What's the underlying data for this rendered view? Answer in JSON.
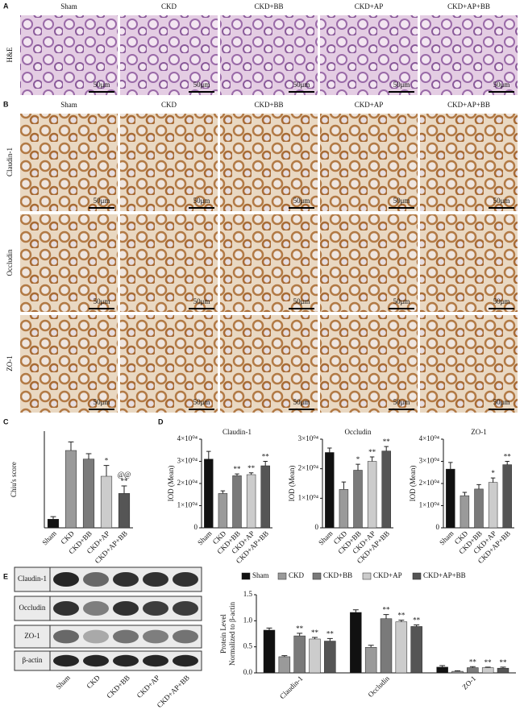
{
  "panel_labels": [
    "A",
    "B",
    "C",
    "D",
    "E"
  ],
  "histology": {
    "groups": [
      "Sham",
      "CKD",
      "CKD+BB",
      "CKD+AP",
      "CKD+AP+BB"
    ],
    "he_label": "H&E",
    "ihc_rows": [
      "Claudin-1",
      "Occludin",
      "ZO-1"
    ],
    "scale_bar": "50μm"
  },
  "western_blot": {
    "proteins": [
      "Claudin-1",
      "Occludin",
      "ZO-1",
      "β-actin"
    ],
    "lanes": [
      "Sham",
      "CKD",
      "CKD+BB",
      "CKD+AP",
      "CKD+AP+BB"
    ]
  },
  "chart_data": [
    {
      "type": "bar",
      "ylabel": "Chiu's score",
      "categories": [
        "Sham",
        "CKD",
        "CKD+BB",
        "CKD+AP",
        "CKD+AP+BB"
      ],
      "values": [
        0.4,
        3.6,
        3.2,
        2.4,
        1.6
      ],
      "errors": [
        0.12,
        0.4,
        0.25,
        0.5,
        0.35
      ],
      "colors": [
        "#111111",
        "#9a9a9a",
        "#7a7a7a",
        "#cccccc",
        "#555555"
      ],
      "markers": [
        [],
        [],
        [],
        [
          "*"
        ],
        [
          "@@",
          "**"
        ]
      ],
      "ylim": [
        0,
        4.5
      ],
      "yticks": []
    },
    {
      "type": "bar",
      "title": "Claudin-1",
      "ylabel": "IOD (Mean)",
      "categories": [
        "Sham",
        "CKD",
        "CKD+BB",
        "CKD+AP",
        "CKD+AP+BB"
      ],
      "values": [
        31000,
        15500,
        23500,
        24000,
        28000
      ],
      "errors": [
        3500,
        1200,
        800,
        800,
        2000
      ],
      "colors": [
        "#111111",
        "#9a9a9a",
        "#7a7a7a",
        "#cccccc",
        "#555555"
      ],
      "markers": [
        [],
        [],
        [
          "**"
        ],
        [
          "**"
        ],
        [
          "**"
        ]
      ],
      "ylim": [
        0,
        40000
      ],
      "yticks": [
        0,
        {
          "value": 10000,
          "label": "1×10⁰⁴"
        },
        {
          "value": 20000,
          "label": "2×10⁰⁴"
        },
        {
          "value": 30000,
          "label": "3×10⁰⁴"
        },
        {
          "value": 40000,
          "label": "4×10⁰⁴"
        }
      ]
    },
    {
      "type": "bar",
      "title": "Occludin",
      "ylabel": "IOD (Mean)",
      "categories": [
        "Sham",
        "CKD",
        "CKD+BB",
        "CKD+AP",
        "CKD+AP+BB"
      ],
      "values": [
        25500,
        13000,
        19500,
        22500,
        26000
      ],
      "errors": [
        1500,
        2500,
        2000,
        1500,
        1500
      ],
      "colors": [
        "#111111",
        "#9a9a9a",
        "#7a7a7a",
        "#cccccc",
        "#555555"
      ],
      "markers": [
        [],
        [],
        [
          "*"
        ],
        [
          "**"
        ],
        [
          "**"
        ]
      ],
      "ylim": [
        0,
        30000
      ],
      "yticks": [
        0,
        {
          "value": 10000,
          "label": "1×10⁰⁴"
        },
        {
          "value": 20000,
          "label": "2×10⁰⁴"
        },
        {
          "value": 30000,
          "label": "3×10⁰⁴"
        }
      ]
    },
    {
      "type": "bar",
      "title": "ZO-1",
      "ylabel": "IOD (Mean)",
      "categories": [
        "Sham",
        "CKD",
        "CKD+BB",
        "CKD+AP",
        "CKD+AP+BB"
      ],
      "values": [
        26500,
        14500,
        17500,
        20500,
        28500
      ],
      "errors": [
        3000,
        1500,
        2000,
        2000,
        1500
      ],
      "colors": [
        "#111111",
        "#9a9a9a",
        "#7a7a7a",
        "#cccccc",
        "#555555"
      ],
      "markers": [
        [],
        [],
        [],
        [
          "*"
        ],
        [
          "**"
        ]
      ],
      "ylim": [
        0,
        40000
      ],
      "yticks": [
        0,
        {
          "value": 10000,
          "label": "1×10⁰⁴"
        },
        {
          "value": 20000,
          "label": "2×10⁰⁴"
        },
        {
          "value": 30000,
          "label": "3×10⁰⁴"
        },
        {
          "value": 40000,
          "label": "4×10⁰⁴"
        }
      ]
    },
    {
      "type": "bar",
      "ylabel": [
        "Protein Level",
        "Normalized to β-actin"
      ],
      "categories": [
        "Claudin-1",
        "Occludin",
        "ZO-1"
      ],
      "series": [
        {
          "name": "Sham",
          "color": "#111111",
          "values": [
            0.82,
            1.16,
            0.11
          ],
          "errors": [
            0.04,
            0.05,
            0.03
          ],
          "markers": [
            [],
            [],
            []
          ]
        },
        {
          "name": "CKD",
          "color": "#9a9a9a",
          "values": [
            0.31,
            0.49,
            0.03
          ],
          "errors": [
            0.02,
            0.04,
            0.01
          ],
          "markers": [
            [],
            [],
            []
          ]
        },
        {
          "name": "CKD+BB",
          "color": "#7a7a7a",
          "values": [
            0.71,
            1.04,
            0.1
          ],
          "errors": [
            0.05,
            0.08,
            0.02
          ],
          "markers": [
            [
              "**"
            ],
            [
              "**"
            ],
            [
              "**"
            ]
          ]
        },
        {
          "name": "CKD+AP",
          "color": "#cccccc",
          "values": [
            0.65,
            0.98,
            0.1
          ],
          "errors": [
            0.03,
            0.03,
            0.01
          ],
          "markers": [
            [
              "**"
            ],
            [
              "**"
            ],
            [
              "**"
            ]
          ]
        },
        {
          "name": "CKD+AP+BB",
          "color": "#555555",
          "values": [
            0.61,
            0.89,
            0.09
          ],
          "errors": [
            0.05,
            0.03,
            0.02
          ],
          "markers": [
            [
              "**"
            ],
            [
              "**"
            ],
            [
              "**"
            ]
          ]
        }
      ],
      "ylim": [
        0,
        1.5
      ],
      "yticks": [
        {
          "value": 0,
          "label": "0.0"
        },
        0.5,
        {
          "value": 1,
          "label": "1.0"
        },
        1.5
      ],
      "legend": "top"
    }
  ]
}
